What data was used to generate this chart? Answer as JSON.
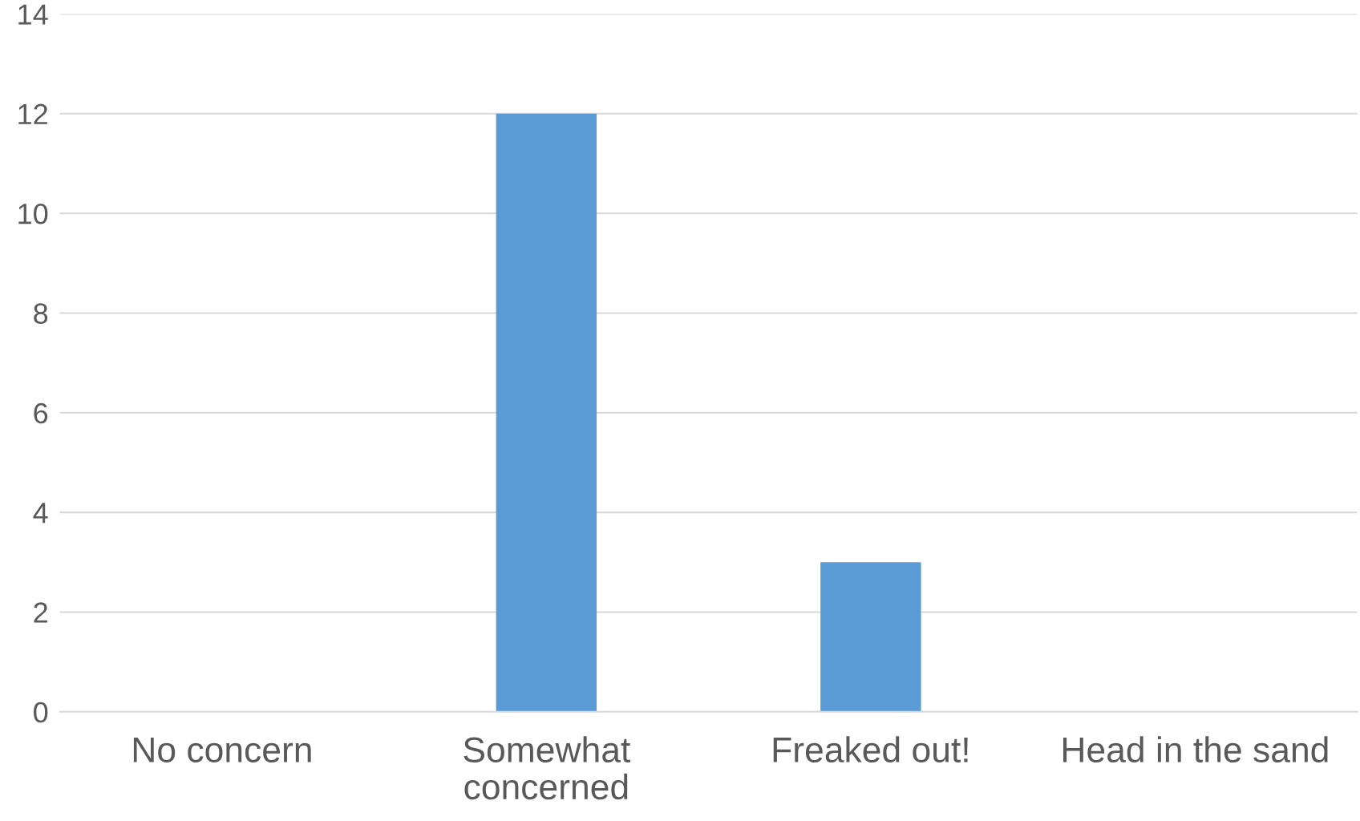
{
  "chart_data": {
    "type": "bar",
    "categories": [
      "No concern",
      "Somewhat concerned",
      "Freaked out!",
      "Head in the sand"
    ],
    "values": [
      0,
      12,
      3,
      0
    ],
    "color": "#5b9bd5",
    "ylim": [
      0,
      14
    ],
    "yticks": [
      0,
      2,
      4,
      6,
      8,
      10,
      12,
      14
    ],
    "grid": "y"
  }
}
